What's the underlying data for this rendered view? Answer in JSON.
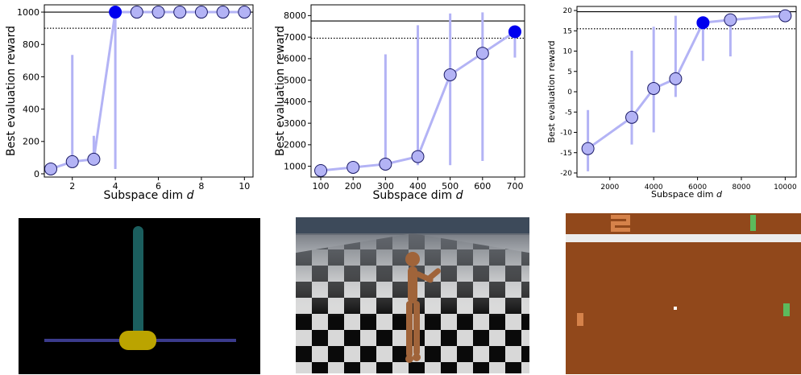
{
  "chart_data": [
    {
      "type": "line",
      "xlabel": "Subspace dim d",
      "ylabel": "Best evaluation reward",
      "xlim": [
        0.7,
        10.4
      ],
      "ylim": [
        -20,
        1045
      ],
      "xticks": [
        2,
        4,
        6,
        8,
        10
      ],
      "yticks": [
        0,
        200,
        400,
        600,
        800,
        1000
      ],
      "reference_lines": {
        "solid": 1000,
        "dotted": 900
      },
      "x": [
        1,
        2,
        3,
        4,
        5,
        6,
        7,
        8,
        9,
        10
      ],
      "y": [
        30,
        75,
        90,
        1000,
        1000,
        1000,
        1000,
        1000,
        1000,
        1000
      ],
      "error_low": [
        30,
        75,
        90,
        30,
        1000,
        1000,
        1000,
        1000,
        1000,
        1000
      ],
      "error_high": [
        30,
        735,
        235,
        1000,
        1000,
        1000,
        1000,
        1000,
        1000,
        1000
      ],
      "highlight_index": 3,
      "grid": false,
      "colors": {
        "line": "#b3b3f5",
        "marker": "#b3b3f5",
        "highlight": "#0000ee",
        "edge": "#1a1a66"
      }
    },
    {
      "type": "line",
      "xlabel": "Subspace dim d",
      "ylabel": "Best evaluation reward",
      "xlim": [
        70,
        730
      ],
      "ylim": [
        500,
        8500
      ],
      "xticks": [
        100,
        200,
        300,
        400,
        500,
        600,
        700
      ],
      "yticks": [
        1000,
        2000,
        3000,
        4000,
        5000,
        6000,
        7000,
        8000
      ],
      "reference_lines": {
        "solid": 7750,
        "dotted": 6950
      },
      "x": [
        100,
        200,
        300,
        400,
        500,
        600,
        700
      ],
      "y": [
        800,
        950,
        1100,
        1450,
        5250,
        6250,
        7250
      ],
      "error_low": [
        800,
        950,
        1100,
        1050,
        1050,
        1250,
        6050
      ],
      "error_high": [
        800,
        950,
        6200,
        7550,
        8100,
        8150,
        7250
      ],
      "highlight_index": 6,
      "grid": false,
      "colors": {
        "line": "#b3b3f5",
        "marker": "#b3b3f5",
        "highlight": "#0000ee",
        "edge": "#1a1a66"
      }
    },
    {
      "type": "line",
      "xlabel": "Subspace dim d",
      "ylabel": "Best evaluation reward",
      "xlim": [
        500,
        10500
      ],
      "ylim": [
        -21,
        21
      ],
      "xticks": [
        2000,
        4000,
        6000,
        8000,
        10000
      ],
      "yticks": [
        -20,
        -15,
        -10,
        -5,
        0,
        5,
        10,
        15,
        20
      ],
      "reference_lines": {
        "solid": 19.7,
        "dotted": 15.5
      },
      "x": [
        1000,
        3000,
        4000,
        5000,
        6250,
        7500,
        10000
      ],
      "y": [
        -14,
        -6.3,
        0.8,
        3.2,
        17,
        17.7,
        18.7
      ],
      "error_low": [
        -19.6,
        -13,
        -10,
        -1.3,
        7.6,
        8.7,
        18.7
      ],
      "error_high": [
        -4.5,
        10.1,
        16,
        18.7,
        17,
        17.7,
        18.7
      ],
      "highlight_index": 4,
      "grid": false,
      "colors": {
        "line": "#b3b3f5",
        "marker": "#b3b3f5",
        "highlight": "#0000ee",
        "edge": "#1a1a66"
      }
    }
  ],
  "images": [
    {
      "name": "cartpole-env-image",
      "colors": {
        "background": "#000000",
        "pole": "#1b5e5e",
        "cart": "#bba400",
        "rail": "#3b3b8c"
      }
    },
    {
      "name": "humanoid-env-image",
      "colors": {
        "sky": "#3d4a5a",
        "floor_dark": "#0a0a0a",
        "floor_light": "#d8d8d8",
        "body": "#a0643a"
      }
    },
    {
      "name": "pong-env-image",
      "colors": {
        "field": "#91481b",
        "wall": "#ececec",
        "paddle_right": "#5cba5c",
        "paddle_left": "#d5824a",
        "score": "#d5824a",
        "ball": "#ffffff"
      }
    }
  ]
}
